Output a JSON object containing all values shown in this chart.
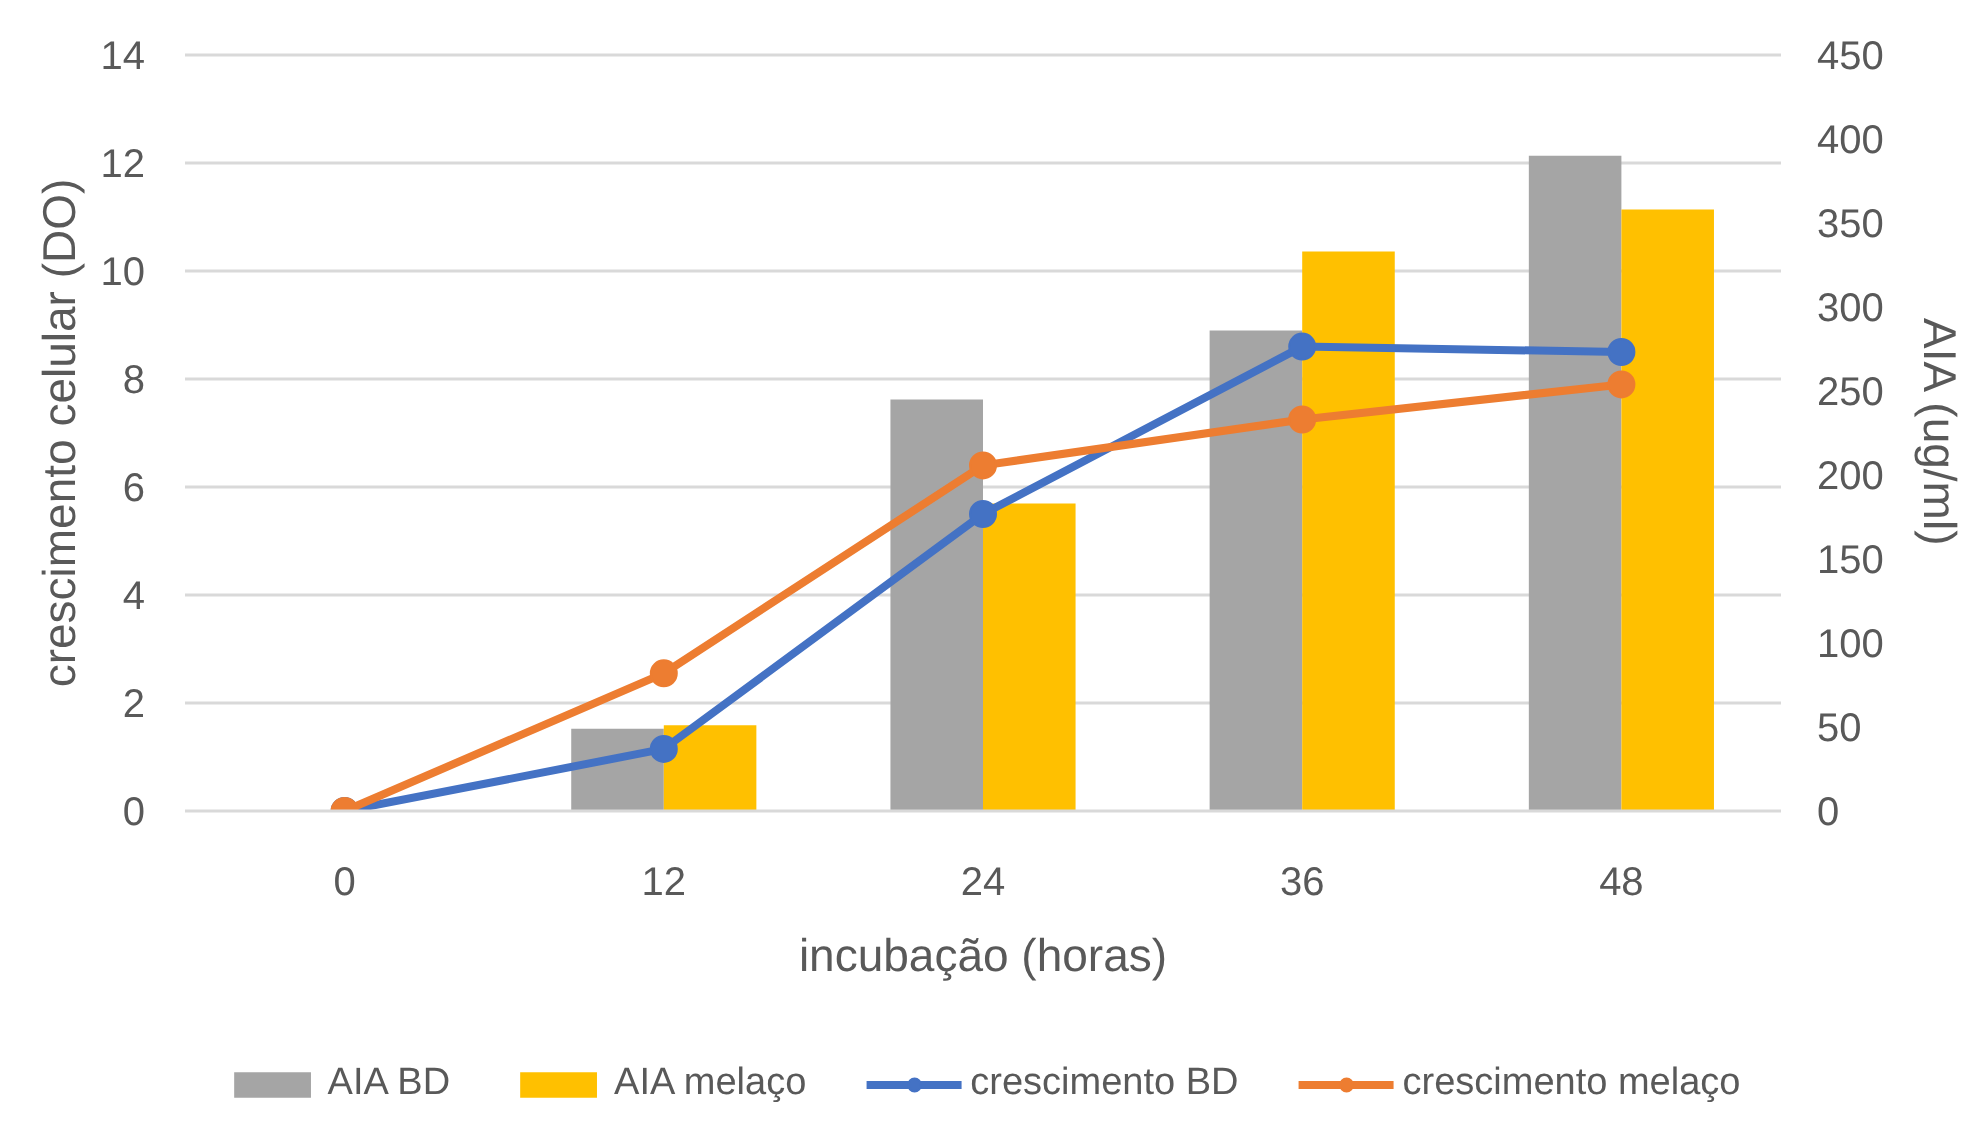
{
  "chart_data": {
    "type": "bar",
    "xlabel": "incubação (horas)",
    "ylabel": "crescimento celular (DO)",
    "y2label": "AIA (ug/ml)",
    "categories": [
      "0",
      "12",
      "24",
      "36",
      "48"
    ],
    "series": [
      {
        "name": "AIA BD",
        "axis": "y2",
        "color": "#a5a5a5",
        "values": [
          0,
          49,
          245,
          286,
          390
        ]
      },
      {
        "name": "AIA melaço",
        "axis": "y2",
        "color": "#ffc000",
        "values": [
          0,
          51,
          183,
          333,
          358
        ]
      },
      {
        "name": "crescimento BD",
        "type": "line",
        "color": "#4472c4",
        "values": [
          0,
          1.15,
          5.5,
          8.6,
          8.5
        ]
      },
      {
        "name": "crescimento melaço",
        "type": "line",
        "color": "#ed7d31",
        "values": [
          0,
          2.55,
          6.4,
          7.25,
          7.9
        ]
      }
    ],
    "ylim": [
      0,
      14
    ],
    "yticks": [
      0,
      2,
      4,
      6,
      8,
      10,
      12,
      14
    ],
    "y2lim": [
      0,
      450
    ],
    "y2ticks": [
      0,
      50,
      100,
      150,
      200,
      250,
      300,
      350,
      400,
      450
    ],
    "grid": "y",
    "legend": "bottom",
    "marker": "circle",
    "line_style": "solid"
  }
}
